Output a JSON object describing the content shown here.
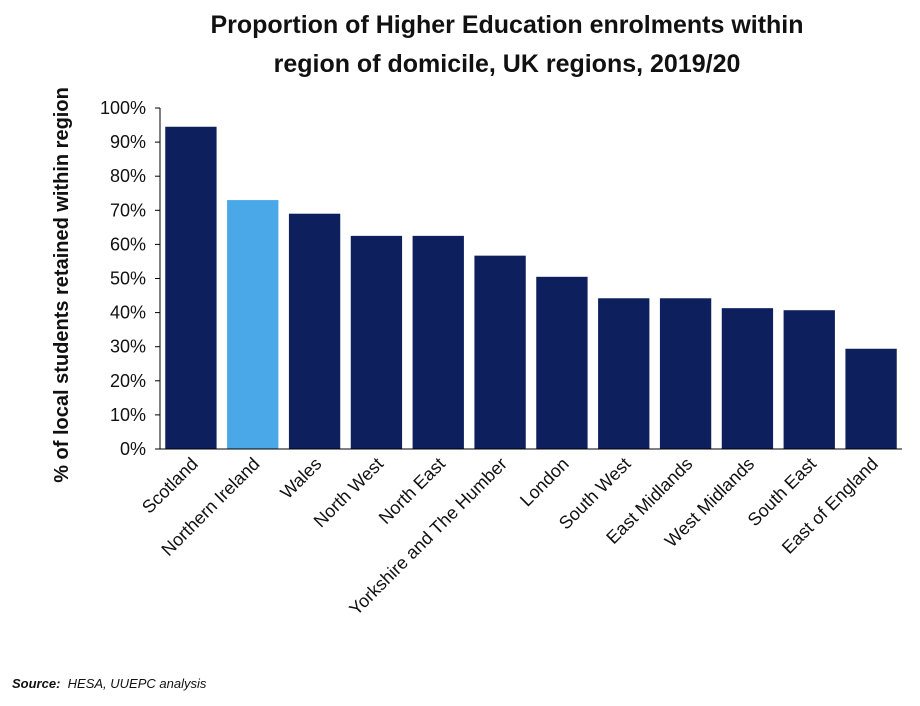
{
  "chart_data": {
    "type": "bar",
    "title_lines": [
      "Proportion of Higher Education enrolments within",
      "region of domicile, UK regions, 2019/20"
    ],
    "xlabel": "",
    "ylabel": "% of local  students retained within region",
    "ylim": [
      0,
      100
    ],
    "yticks": [
      0,
      10,
      20,
      30,
      40,
      50,
      60,
      70,
      80,
      90,
      100
    ],
    "ytick_labels": [
      "0%",
      "10%",
      "20%",
      "30%",
      "40%",
      "50%",
      "60%",
      "70%",
      "80%",
      "90%",
      "100%"
    ],
    "categories": [
      "Scotland",
      "Northern Ireland",
      "Wales",
      "North West",
      "North East",
      "Yorkshire and The Humber",
      "London",
      "South West",
      "East Midlands",
      "West Midlands",
      "South East",
      "East of England"
    ],
    "values": [
      94.5,
      73,
      69,
      62.5,
      62.5,
      56.7,
      50.5,
      44.2,
      44.2,
      41.3,
      40.7,
      29.4
    ],
    "bar_colors": [
      "#0d1f5c",
      "#4aa8e8",
      "#0d1f5c",
      "#0d1f5c",
      "#0d1f5c",
      "#0d1f5c",
      "#0d1f5c",
      "#0d1f5c",
      "#0d1f5c",
      "#0d1f5c",
      "#0d1f5c",
      "#0d1f5c"
    ],
    "grid": false,
    "legend": "none"
  },
  "source": {
    "label": "Source:",
    "text": "HESA, UUEPC analysis"
  },
  "colors": {
    "primary_bar": "#0d1f5c",
    "highlight_bar": "#4aa8e8",
    "axis": "#000000"
  }
}
